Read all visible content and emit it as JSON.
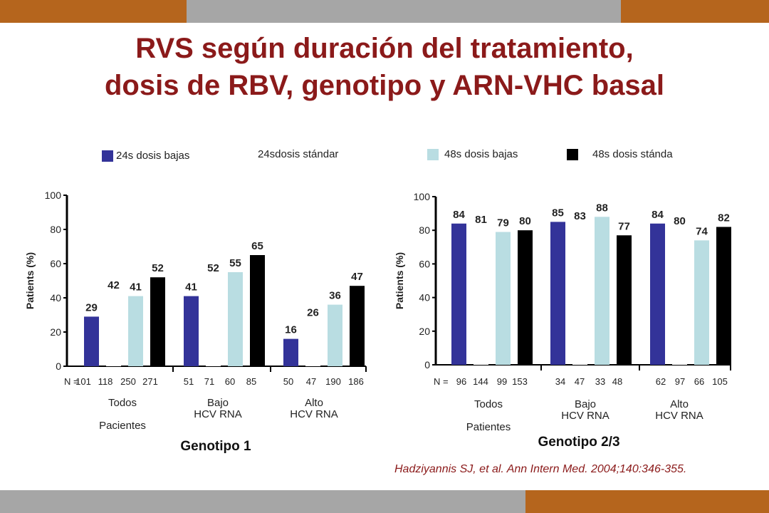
{
  "title_line1": "RVS según duración del tratamiento,",
  "title_line2": "dosis de RBV, genotipo y ARN-VHC basal",
  "colors": {
    "band_orange": "#b5651d",
    "band_gray": "#a6a6a6",
    "title": "#8b1a1a",
    "s24_bajas": "#333399",
    "s24_estandar": "#ffffff",
    "s48_bajas": "#b9dde2",
    "s48_estandar": "#000000"
  },
  "legend": [
    {
      "label": "24s dosis bajas",
      "color": "#333399"
    },
    {
      "label": "24sdosis stándar",
      "color": "#ffffff"
    },
    {
      "label": "48s dosis bajas",
      "color": "#b9dde2"
    },
    {
      "label": "48s dosis stánda",
      "color": "#000000"
    }
  ],
  "citation": "Hadziyannis SJ, et al. Ann Intern Med. 2004;140:346-355.",
  "chart_data": [
    {
      "type": "bar",
      "title": "Genotipo 1",
      "ylabel": "Patients (%)",
      "ylim": [
        0,
        100
      ],
      "yticks": [
        "0",
        "20",
        "40",
        "60",
        "80",
        "100"
      ],
      "n_prefix": "N =",
      "groups": [
        {
          "label_lines": [
            "Todos",
            "",
            "Pacientes"
          ],
          "n": [
            "101",
            "118",
            "250",
            "271"
          ],
          "values": [
            29,
            42,
            41,
            52
          ]
        },
        {
          "label_lines": [
            "Bajo",
            "HCV RNA"
          ],
          "n": [
            "51",
            "71",
            "60",
            "85"
          ],
          "values": [
            41,
            52,
            55,
            65
          ]
        },
        {
          "label_lines": [
            "Alto",
            "HCV RNA"
          ],
          "n": [
            "50",
            "47",
            "190",
            "186"
          ],
          "values": [
            16,
            26,
            36,
            47
          ]
        }
      ]
    },
    {
      "type": "bar",
      "title": "Genotipo 2/3",
      "ylabel": "Patients (%)",
      "ylim": [
        0,
        100
      ],
      "yticks": [
        "0",
        "20",
        "40",
        "60",
        "80",
        "100"
      ],
      "n_prefix": "N =",
      "groups": [
        {
          "label_lines": [
            "Todos",
            "",
            "Patientes"
          ],
          "n": [
            "96",
            "144",
            "99",
            "153"
          ],
          "values": [
            84,
            81,
            79,
            80
          ]
        },
        {
          "label_lines": [
            "Bajo",
            "HCV RNA"
          ],
          "n": [
            "34",
            "47",
            "33",
            "48"
          ],
          "values": [
            85,
            83,
            88,
            77
          ]
        },
        {
          "label_lines": [
            "Alto",
            "HCV RNA"
          ],
          "n": [
            "62",
            "97",
            "66",
            "105"
          ],
          "values": [
            84,
            80,
            74,
            82
          ]
        }
      ]
    }
  ]
}
